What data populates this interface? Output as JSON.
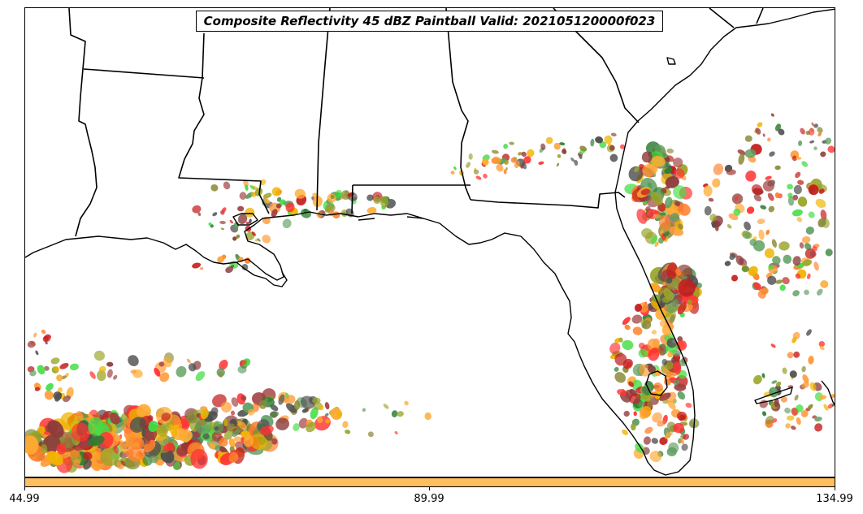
{
  "title": "Composite Reflectivity 45 dBZ Paintball Valid: 202105120000f023",
  "colorbar": {
    "color": "#ffbf60",
    "tick_labels": [
      "44.99",
      "89.99",
      "134.99"
    ]
  },
  "map": {
    "region": "US Gulf Coast and Florida",
    "features": [
      "coastline",
      "state-borders"
    ],
    "palette": [
      "#c41e1e",
      "#ff3333",
      "#ff7f2a",
      "#ff9933",
      "#ffaa33",
      "#f0b400",
      "#9aa52a",
      "#8b8b3a",
      "#2e7d32",
      "#5f9e5f",
      "#44dd44",
      "#8b3a3a",
      "#a04040",
      "#4d4d4d"
    ]
  }
}
